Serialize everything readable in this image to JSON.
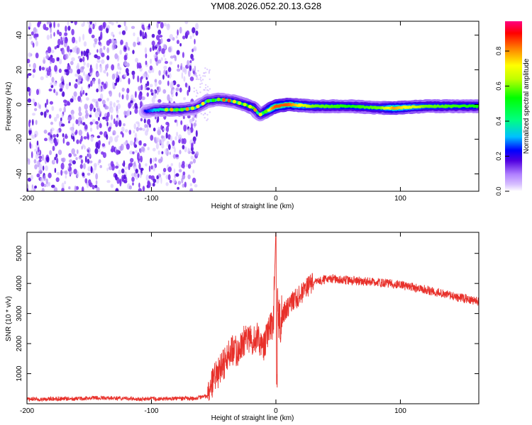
{
  "figure": {
    "title": "YM08.2026.052.20.13.G28"
  },
  "chart_data": [
    {
      "type": "heatmap",
      "title": "",
      "xlabel": "Height of straight line (km)",
      "ylabel": "Frequency (Hz)",
      "xlim": [
        -200,
        163
      ],
      "ylim": [
        -50,
        48
      ],
      "xticks": [
        -200,
        -100,
        0,
        100
      ],
      "xtick_labels": [
        "-200",
        "-100",
        "0",
        "100"
      ],
      "yticks": [
        -40,
        -20,
        0,
        20,
        40
      ],
      "ytick_labels": [
        "-40",
        "-20",
        "0",
        "20",
        "40"
      ],
      "grid": false,
      "colorbar": {
        "label": "Normalized spectral amplitude",
        "range": [
          0,
          0.97
        ],
        "ticks": [
          0,
          0.2,
          0.4,
          0.6,
          0.8
        ],
        "tick_labels": [
          "0.0",
          "0.2",
          "0.4",
          "0.6",
          "0.8"
        ],
        "colors": [
          "#ffffff",
          "#b080ff",
          "#5000e0",
          "#0000ff",
          "#00c0ff",
          "#00ff80",
          "#00ff00",
          "#c0ff00",
          "#ffff00",
          "#ff8000",
          "#ff0000",
          "#ff0080"
        ]
      },
      "noise_region_x": [
        -200,
        -63
      ],
      "signal_track": {
        "x": [
          -105,
          -95,
          -85,
          -75,
          -65,
          -55,
          -45,
          -35,
          -25,
          -18,
          -13,
          -8,
          -3,
          0,
          10,
          30,
          60,
          85,
          95,
          120,
          163
        ],
        "y": [
          -4,
          -3,
          -3,
          -3,
          -2,
          2,
          3,
          2,
          0,
          -2,
          -6,
          -4,
          -2,
          -1,
          0,
          -1,
          -1,
          -2,
          -2,
          -1,
          -1
        ],
        "amplitude": [
          0.25,
          0.4,
          0.45,
          0.45,
          0.4,
          0.4,
          0.45,
          0.45,
          0.5,
          0.6,
          0.4,
          0.55,
          0.8,
          0.85,
          0.85,
          0.6,
          0.55,
          0.6,
          0.8,
          0.6,
          0.55
        ]
      }
    },
    {
      "type": "line",
      "title": "",
      "xlabel": "Height of straight line (km)",
      "ylabel": "SNR (10 * v/v)",
      "xlim": [
        -200,
        163
      ],
      "ylim": [
        0,
        5700
      ],
      "xticks": [
        -200,
        -100,
        0,
        100
      ],
      "xtick_labels": [
        "-200",
        "-100",
        "0",
        "100"
      ],
      "yticks": [
        1000,
        2000,
        3000,
        4000,
        5000
      ],
      "ytick_labels": [
        "1000",
        "2000",
        "3000",
        "4000",
        "5000"
      ],
      "grid": false,
      "series": [
        {
          "name": "SNR",
          "color": "#e8302a",
          "x": [
            -200,
            -180,
            -160,
            -140,
            -120,
            -100,
            -80,
            -65,
            -55,
            -50,
            -45,
            -40,
            -35,
            -30,
            -25,
            -20,
            -15,
            -10,
            -5,
            -2,
            0,
            2,
            5,
            10,
            20,
            30,
            40,
            50,
            60,
            80,
            100,
            120,
            140,
            163
          ],
          "y": [
            150,
            160,
            170,
            200,
            170,
            160,
            170,
            180,
            250,
            850,
            1100,
            1450,
            1800,
            1700,
            2150,
            2100,
            2200,
            1800,
            2500,
            2700,
            5600,
            2800,
            3000,
            3250,
            3650,
            4050,
            4150,
            4150,
            4100,
            4050,
            3950,
            3800,
            3600,
            3400
          ]
        }
      ]
    }
  ]
}
